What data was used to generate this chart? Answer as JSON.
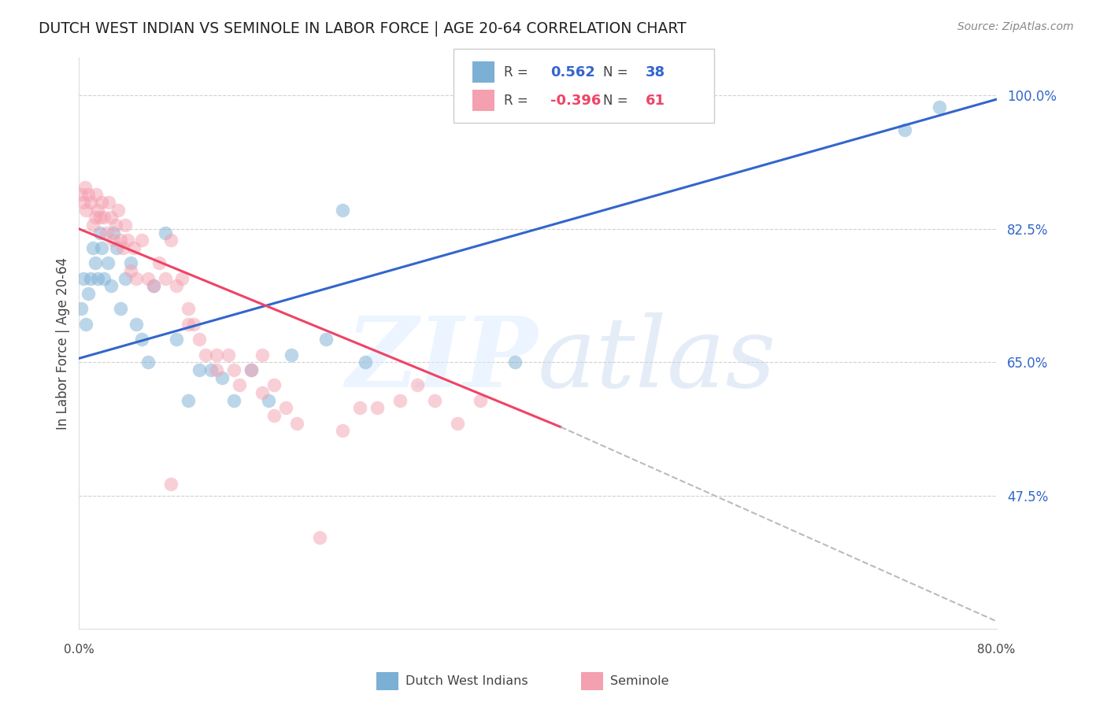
{
  "title": "DUTCH WEST INDIAN VS SEMINOLE IN LABOR FORCE | AGE 20-64 CORRELATION CHART",
  "source": "Source: ZipAtlas.com",
  "ylabel": "In Labor Force | Age 20-64",
  "xlim": [
    0.0,
    0.8
  ],
  "ylim": [
    0.3,
    1.05
  ],
  "grid_color": "#cccccc",
  "background_color": "#ffffff",
  "blue_color": "#7bafd4",
  "pink_color": "#f4a0b0",
  "blue_line_color": "#3366cc",
  "pink_line_color": "#ee4466",
  "legend_R1": "0.562",
  "legend_N1": "38",
  "legend_R2": "-0.396",
  "legend_N2": "61",
  "blue_line": [
    0.0,
    0.655,
    0.8,
    0.995
  ],
  "pink_line_solid": [
    0.0,
    0.825,
    0.42,
    0.565
  ],
  "pink_line_dash": [
    0.42,
    0.565,
    0.8,
    0.31
  ],
  "dutch_x": [
    0.002,
    0.004,
    0.006,
    0.008,
    0.01,
    0.012,
    0.014,
    0.016,
    0.018,
    0.02,
    0.022,
    0.025,
    0.028,
    0.03,
    0.033,
    0.036,
    0.04,
    0.045,
    0.05,
    0.055,
    0.06,
    0.065,
    0.075,
    0.085,
    0.095,
    0.105,
    0.115,
    0.125,
    0.135,
    0.15,
    0.165,
    0.185,
    0.215,
    0.23,
    0.25,
    0.38,
    0.72,
    0.75
  ],
  "dutch_y": [
    0.72,
    0.76,
    0.7,
    0.74,
    0.76,
    0.8,
    0.78,
    0.76,
    0.82,
    0.8,
    0.76,
    0.78,
    0.75,
    0.82,
    0.8,
    0.72,
    0.76,
    0.78,
    0.7,
    0.68,
    0.65,
    0.75,
    0.82,
    0.68,
    0.6,
    0.64,
    0.64,
    0.63,
    0.6,
    0.64,
    0.6,
    0.66,
    0.68,
    0.85,
    0.65,
    0.65,
    0.955,
    0.985
  ],
  "seminole_x": [
    0.002,
    0.004,
    0.005,
    0.006,
    0.008,
    0.01,
    0.012,
    0.014,
    0.015,
    0.016,
    0.018,
    0.02,
    0.022,
    0.024,
    0.026,
    0.028,
    0.03,
    0.032,
    0.034,
    0.036,
    0.038,
    0.04,
    0.042,
    0.045,
    0.048,
    0.05,
    0.055,
    0.06,
    0.065,
    0.07,
    0.075,
    0.08,
    0.085,
    0.09,
    0.095,
    0.1,
    0.11,
    0.12,
    0.13,
    0.14,
    0.15,
    0.16,
    0.17,
    0.18,
    0.19,
    0.21,
    0.23,
    0.245,
    0.26,
    0.28,
    0.295,
    0.31,
    0.33,
    0.35,
    0.16,
    0.17,
    0.12,
    0.135,
    0.105,
    0.095,
    0.08
  ],
  "seminole_y": [
    0.87,
    0.86,
    0.88,
    0.85,
    0.87,
    0.86,
    0.83,
    0.84,
    0.87,
    0.85,
    0.84,
    0.86,
    0.84,
    0.82,
    0.86,
    0.84,
    0.81,
    0.83,
    0.85,
    0.81,
    0.8,
    0.83,
    0.81,
    0.77,
    0.8,
    0.76,
    0.81,
    0.76,
    0.75,
    0.78,
    0.76,
    0.81,
    0.75,
    0.76,
    0.72,
    0.7,
    0.66,
    0.64,
    0.66,
    0.62,
    0.64,
    0.61,
    0.58,
    0.59,
    0.57,
    0.42,
    0.56,
    0.59,
    0.59,
    0.6,
    0.62,
    0.6,
    0.57,
    0.6,
    0.66,
    0.62,
    0.66,
    0.64,
    0.68,
    0.7,
    0.49
  ]
}
